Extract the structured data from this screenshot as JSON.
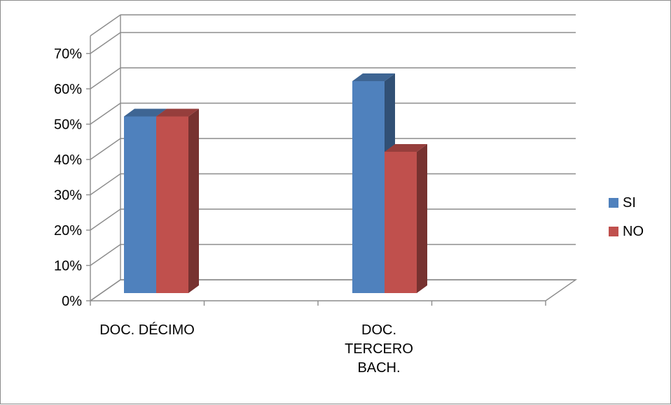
{
  "chart_data": {
    "type": "bar",
    "categories": [
      [
        "DOC. DÉCIMO"
      ],
      [
        "DOC.",
        "TERCERO",
        "BACH."
      ]
    ],
    "series": [
      {
        "name": "SI",
        "values": [
          50,
          60
        ],
        "color": "#4f81bd"
      },
      {
        "name": "NO",
        "values": [
          50,
          40
        ],
        "color": "#c0504d"
      }
    ],
    "yticks": [
      "0%",
      "10%",
      "20%",
      "30%",
      "40%",
      "50%",
      "60%",
      "70%"
    ],
    "ylim": [
      0,
      70
    ],
    "grid": true,
    "legend": "right",
    "style": "3d-clustered-column"
  }
}
